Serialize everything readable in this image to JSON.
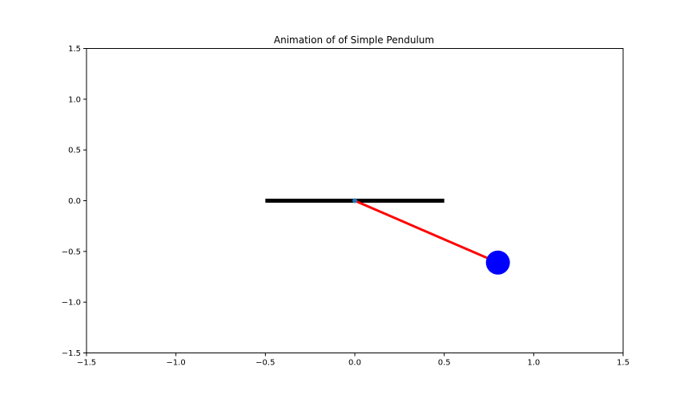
{
  "chart_data": {
    "type": "line",
    "title": "Animation of of Simple Pendulum",
    "xlabel": "",
    "ylabel": "",
    "xlim": [
      -1.5,
      1.5
    ],
    "ylim": [
      -1.5,
      1.5
    ],
    "x_ticks": [
      -1.5,
      -1.0,
      -0.5,
      0.0,
      0.5,
      1.0,
      1.5
    ],
    "x_tick_labels": [
      "−1.5",
      "−1.0",
      "−0.5",
      "0.0",
      "0.5",
      "1.0",
      "1.5"
    ],
    "y_ticks": [
      1.5,
      1.0,
      0.5,
      0.0,
      -0.5,
      -1.0,
      -1.5
    ],
    "y_tick_labels": [
      "1.5",
      "1.0",
      "0.5",
      "0.0",
      "−0.5",
      "−1.0",
      "−1.5"
    ],
    "grid": false,
    "ceiling": {
      "x": [
        -0.5,
        0.5
      ],
      "y": [
        0.0,
        0.0
      ],
      "color": "#000000"
    },
    "pivot": {
      "x": 0.0,
      "y": 0.0,
      "color": "#1f77b4"
    },
    "rod": {
      "x": [
        0.0,
        0.8
      ],
      "y": [
        0.0,
        -0.61
      ],
      "color": "#ff0000"
    },
    "bob": {
      "x": 0.8,
      "y": -0.61,
      "color": "#0000ff"
    }
  }
}
